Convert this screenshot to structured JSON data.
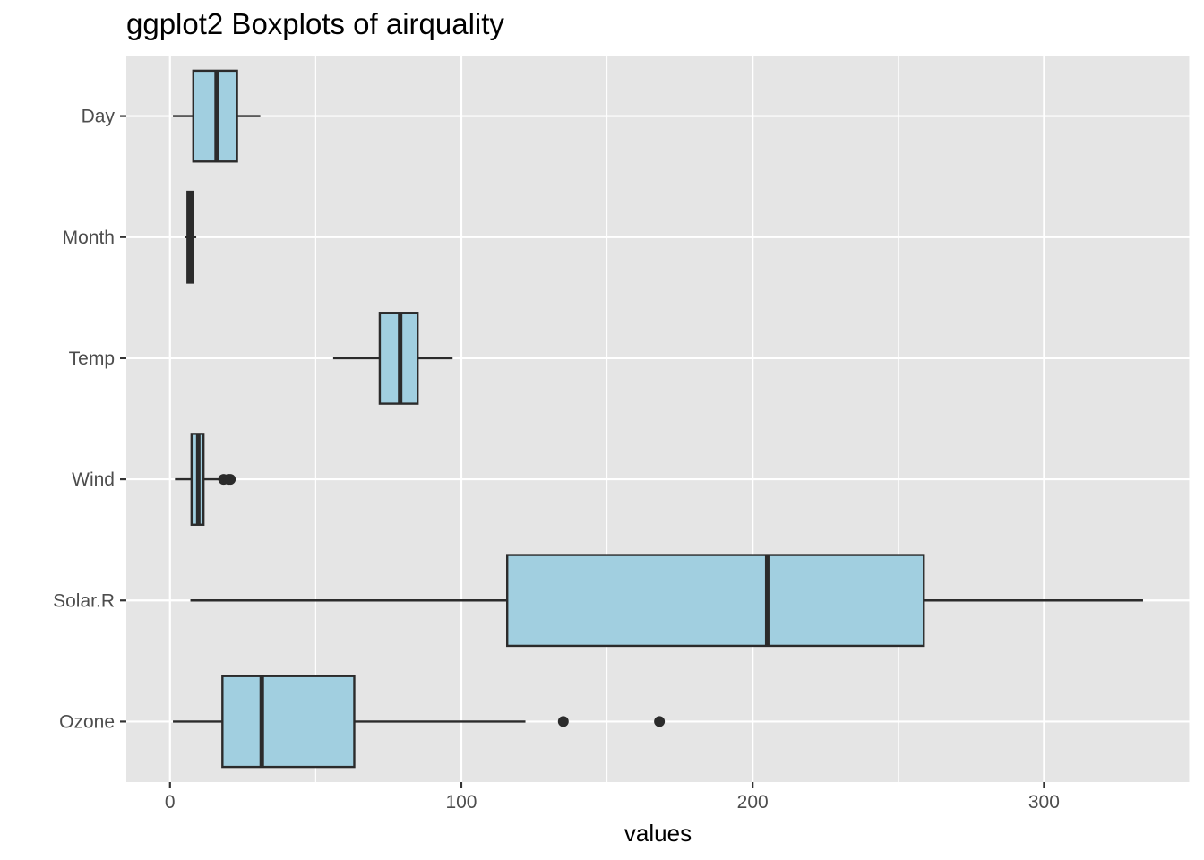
{
  "chart_data": {
    "type": "boxplot",
    "orientation": "horizontal",
    "title": "ggplot2 Boxplots of airquality",
    "xlabel": "values",
    "ylabel": "",
    "xlim": [
      -15,
      350
    ],
    "x_ticks": [
      0,
      100,
      200,
      300
    ],
    "grid": true,
    "colors": {
      "panel": "#e5e5e5",
      "grid": "#ffffff",
      "box_fill": "#a1cfe0",
      "stroke": "#2b2b2b"
    },
    "series": [
      {
        "category": "Ozone",
        "whisker_low": 1,
        "q1": 18,
        "median": 31.5,
        "q3": 63.25,
        "whisker_high": 122,
        "outliers": [
          135,
          168
        ]
      },
      {
        "category": "Solar.R",
        "whisker_low": 7,
        "q1": 115.75,
        "median": 205,
        "q3": 258.75,
        "whisker_high": 334,
        "outliers": []
      },
      {
        "category": "Wind",
        "whisker_low": 1.7,
        "q1": 7.4,
        "median": 9.7,
        "q3": 11.5,
        "whisker_high": 17.5,
        "outliers": [
          18.4,
          20.1,
          20.7
        ]
      },
      {
        "category": "Temp",
        "whisker_low": 56,
        "q1": 72,
        "median": 79,
        "q3": 85,
        "whisker_high": 97,
        "outliers": []
      },
      {
        "category": "Month",
        "whisker_low": 5,
        "q1": 6,
        "median": 7,
        "q3": 8,
        "whisker_high": 9,
        "outliers": []
      },
      {
        "category": "Day",
        "whisker_low": 1,
        "q1": 8,
        "median": 16,
        "q3": 23,
        "whisker_high": 31,
        "outliers": []
      }
    ]
  }
}
